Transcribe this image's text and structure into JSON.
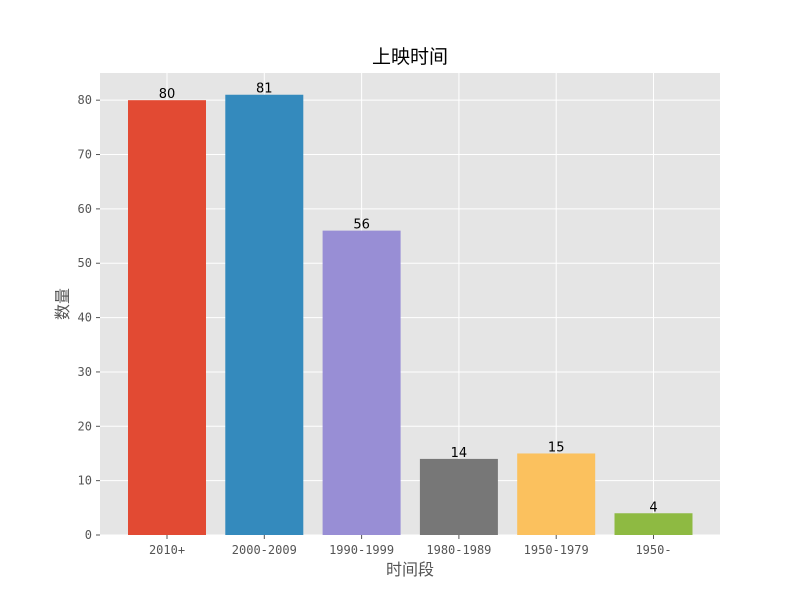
{
  "chart_data": {
    "type": "bar",
    "title": "上映时间",
    "xlabel": "时间段",
    "ylabel": "数量",
    "categories": [
      "2010+",
      "2000-2009",
      "1990-1999",
      "1980-1989",
      "1950-1979",
      "1950-"
    ],
    "values": [
      80,
      81,
      56,
      14,
      15,
      4
    ],
    "colors": [
      "#e24a33",
      "#348abd",
      "#988ed5",
      "#777777",
      "#fbc15e",
      "#8eba42"
    ],
    "ylim": [
      0,
      85
    ],
    "yticks": [
      0,
      10,
      20,
      30,
      40,
      50,
      60,
      70,
      80
    ],
    "grid": true,
    "background_color": "#e5e5e5",
    "grid_color": "#ffffff"
  }
}
